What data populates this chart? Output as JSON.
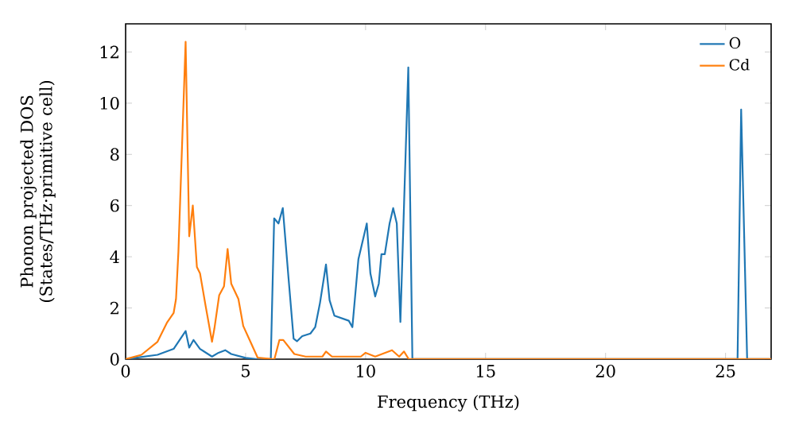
{
  "chart_data": {
    "type": "line",
    "xlabel": "Frequency (THz)",
    "ylabel": "Phonon projected DOS (States/THz·primitive cell)",
    "xlim": [
      0,
      26.9
    ],
    "ylim": [
      0,
      13.1
    ],
    "xticks": [
      0,
      5,
      10,
      15,
      20,
      25
    ],
    "yticks": [
      0,
      2,
      4,
      6,
      8,
      10,
      12
    ],
    "legend": "top right",
    "series": [
      {
        "name": "O",
        "color": "#1f77b4",
        "x": [
          0,
          1.33,
          2.0,
          2.5,
          2.65,
          2.83,
          3.1,
          3.6,
          3.87,
          4.15,
          4.4,
          5.0,
          5.5,
          6.05,
          6.19,
          6.37,
          6.55,
          6.79,
          7.0,
          7.14,
          7.36,
          7.7,
          7.9,
          8.1,
          8.35,
          8.5,
          8.7,
          9.0,
          9.3,
          9.45,
          9.7,
          10.05,
          10.2,
          10.4,
          10.55,
          10.66,
          10.8,
          11.0,
          11.15,
          11.3,
          11.45,
          11.78,
          11.95,
          25.5,
          25.65,
          25.9,
          26.9
        ],
        "values": [
          0,
          0.17,
          0.4,
          1.1,
          0.45,
          0.75,
          0.4,
          0.1,
          0.25,
          0.35,
          0.2,
          0.05,
          0,
          0,
          5.5,
          5.3,
          5.9,
          3.15,
          0.8,
          0.7,
          0.9,
          1.0,
          1.25,
          2.2,
          3.7,
          2.3,
          1.7,
          1.6,
          1.5,
          1.25,
          3.9,
          5.3,
          3.35,
          2.45,
          2.95,
          4.1,
          4.1,
          5.3,
          5.9,
          5.3,
          1.45,
          11.4,
          0,
          0,
          9.75,
          0,
          0
        ]
      },
      {
        "name": "Cd",
        "color": "#ff7f0e",
        "x": [
          0,
          0.66,
          1.33,
          1.72,
          2.0,
          2.1,
          2.2,
          2.5,
          2.65,
          2.8,
          2.97,
          3.1,
          3.33,
          3.6,
          3.7,
          3.9,
          4.1,
          4.25,
          4.4,
          4.7,
          4.9,
          5.2,
          5.5,
          6.2,
          6.41,
          6.57,
          7.03,
          7.5,
          8.2,
          8.35,
          8.6,
          9.8,
          10.0,
          10.4,
          11.1,
          11.4,
          11.6,
          11.8,
          26.9
        ],
        "values": [
          0,
          0.17,
          0.68,
          1.42,
          1.8,
          2.35,
          4.2,
          12.4,
          4.8,
          6.0,
          3.6,
          3.35,
          2.1,
          0.68,
          1.2,
          2.5,
          2.85,
          4.3,
          2.95,
          2.35,
          1.3,
          0.68,
          0.06,
          0,
          0.75,
          0.75,
          0.2,
          0.1,
          0.1,
          0.3,
          0.1,
          0.1,
          0.25,
          0.1,
          0.35,
          0.1,
          0.3,
          0,
          0
        ]
      }
    ]
  }
}
